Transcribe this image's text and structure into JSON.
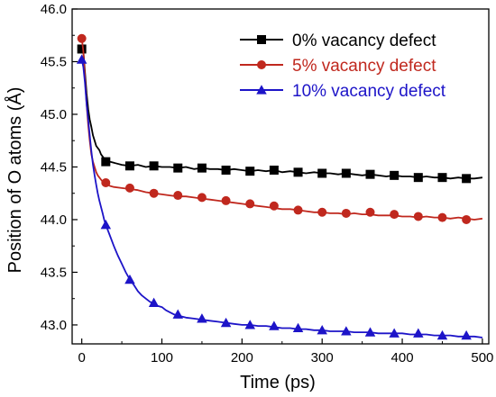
{
  "chart_data": {
    "type": "line",
    "xlabel": "Time (ps)",
    "ylabel": "Position of O atoms (Å)",
    "xlim": [
      -12,
      508
    ],
    "ylim": [
      42.82,
      46.0
    ],
    "x_ticks": [
      0,
      100,
      200,
      300,
      400,
      500
    ],
    "y_ticks": [
      43.0,
      43.5,
      44.0,
      44.5,
      45.0,
      45.5,
      46.0
    ],
    "legend_position": "top-right",
    "grid": false,
    "series": [
      {
        "name": "0% vacancy defect",
        "color": "#000000",
        "marker": "square",
        "line": [
          [
            0,
            45.62
          ],
          [
            2,
            45.6
          ],
          [
            4,
            45.4
          ],
          [
            6,
            45.2
          ],
          [
            8,
            45.05
          ],
          [
            10,
            44.95
          ],
          [
            12,
            44.88
          ],
          [
            14,
            44.8
          ],
          [
            16,
            44.75
          ],
          [
            18,
            44.7
          ],
          [
            20,
            44.68
          ],
          [
            22,
            44.66
          ],
          [
            24,
            44.62
          ],
          [
            26,
            44.6
          ],
          [
            28,
            44.58
          ],
          [
            30,
            44.56
          ],
          [
            35,
            44.55
          ],
          [
            40,
            44.54
          ],
          [
            50,
            44.52
          ],
          [
            60,
            44.51
          ],
          [
            70,
            44.52
          ],
          [
            80,
            44.5
          ],
          [
            90,
            44.51
          ],
          [
            100,
            44.5
          ],
          [
            110,
            44.5
          ],
          [
            120,
            44.49
          ],
          [
            130,
            44.5
          ],
          [
            140,
            44.48
          ],
          [
            150,
            44.49
          ],
          [
            160,
            44.48
          ],
          [
            170,
            44.48
          ],
          [
            180,
            44.47
          ],
          [
            190,
            44.48
          ],
          [
            200,
            44.47
          ],
          [
            210,
            44.46
          ],
          [
            220,
            44.47
          ],
          [
            230,
            44.46
          ],
          [
            240,
            44.47
          ],
          [
            250,
            44.45
          ],
          [
            260,
            44.46
          ],
          [
            270,
            44.45
          ],
          [
            280,
            44.44
          ],
          [
            290,
            44.45
          ],
          [
            300,
            44.44
          ],
          [
            310,
            44.44
          ],
          [
            320,
            44.43
          ],
          [
            330,
            44.44
          ],
          [
            340,
            44.43
          ],
          [
            350,
            44.42
          ],
          [
            360,
            44.43
          ],
          [
            370,
            44.42
          ],
          [
            380,
            44.41
          ],
          [
            390,
            44.42
          ],
          [
            400,
            44.41
          ],
          [
            410,
            44.41
          ],
          [
            420,
            44.4
          ],
          [
            430,
            44.41
          ],
          [
            440,
            44.4
          ],
          [
            450,
            44.4
          ],
          [
            460,
            44.39
          ],
          [
            470,
            44.4
          ],
          [
            480,
            44.39
          ],
          [
            490,
            44.39
          ],
          [
            500,
            44.4
          ]
        ],
        "markers": [
          [
            0,
            45.62
          ],
          [
            30,
            44.55
          ],
          [
            60,
            44.51
          ],
          [
            90,
            44.51
          ],
          [
            120,
            44.49
          ],
          [
            150,
            44.49
          ],
          [
            180,
            44.47
          ],
          [
            210,
            44.46
          ],
          [
            240,
            44.47
          ],
          [
            270,
            44.45
          ],
          [
            300,
            44.44
          ],
          [
            330,
            44.44
          ],
          [
            360,
            44.43
          ],
          [
            390,
            44.42
          ],
          [
            420,
            44.4
          ],
          [
            450,
            44.4
          ],
          [
            480,
            44.39
          ]
        ]
      },
      {
        "name": "5% vacancy defect",
        "color": "#c0281e",
        "marker": "circle",
        "line": [
          [
            0,
            45.72
          ],
          [
            2,
            45.6
          ],
          [
            4,
            45.35
          ],
          [
            6,
            45.1
          ],
          [
            8,
            44.9
          ],
          [
            10,
            44.75
          ],
          [
            12,
            44.62
          ],
          [
            14,
            44.55
          ],
          [
            16,
            44.5
          ],
          [
            18,
            44.45
          ],
          [
            20,
            44.42
          ],
          [
            22,
            44.4
          ],
          [
            24,
            44.38
          ],
          [
            26,
            44.36
          ],
          [
            28,
            44.35
          ],
          [
            30,
            44.34
          ],
          [
            35,
            44.32
          ],
          [
            40,
            44.31
          ],
          [
            50,
            44.3
          ],
          [
            60,
            44.29
          ],
          [
            70,
            44.28
          ],
          [
            80,
            44.26
          ],
          [
            90,
            44.25
          ],
          [
            100,
            44.24
          ],
          [
            110,
            44.23
          ],
          [
            120,
            44.22
          ],
          [
            130,
            44.22
          ],
          [
            140,
            44.21
          ],
          [
            150,
            44.2
          ],
          [
            160,
            44.19
          ],
          [
            170,
            44.18
          ],
          [
            180,
            44.17
          ],
          [
            190,
            44.16
          ],
          [
            200,
            44.15
          ],
          [
            210,
            44.14
          ],
          [
            220,
            44.13
          ],
          [
            230,
            44.12
          ],
          [
            240,
            44.11
          ],
          [
            250,
            44.1
          ],
          [
            260,
            44.1
          ],
          [
            270,
            44.09
          ],
          [
            280,
            44.08
          ],
          [
            290,
            44.07
          ],
          [
            300,
            44.07
          ],
          [
            310,
            44.06
          ],
          [
            320,
            44.06
          ],
          [
            330,
            44.05
          ],
          [
            340,
            44.06
          ],
          [
            350,
            44.05
          ],
          [
            360,
            44.05
          ],
          [
            370,
            44.04
          ],
          [
            380,
            44.04
          ],
          [
            390,
            44.04
          ],
          [
            400,
            44.03
          ],
          [
            410,
            44.03
          ],
          [
            420,
            44.02
          ],
          [
            430,
            44.03
          ],
          [
            440,
            44.02
          ],
          [
            450,
            44.02
          ],
          [
            460,
            44.01
          ],
          [
            470,
            44.02
          ],
          [
            480,
            44.01
          ],
          [
            490,
            44.0
          ],
          [
            500,
            44.01
          ]
        ],
        "markers": [
          [
            0,
            45.72
          ],
          [
            30,
            44.35
          ],
          [
            60,
            44.3
          ],
          [
            90,
            44.25
          ],
          [
            120,
            44.23
          ],
          [
            150,
            44.21
          ],
          [
            180,
            44.18
          ],
          [
            210,
            44.15
          ],
          [
            240,
            44.13
          ],
          [
            270,
            44.09
          ],
          [
            300,
            44.07
          ],
          [
            330,
            44.06
          ],
          [
            360,
            44.07
          ],
          [
            390,
            44.05
          ],
          [
            420,
            44.03
          ],
          [
            450,
            44.02
          ],
          [
            480,
            44.0
          ]
        ]
      },
      {
        "name": "10% vacancy defect",
        "color": "#1d14c8",
        "marker": "triangle",
        "line": [
          [
            0,
            45.52
          ],
          [
            2,
            45.45
          ],
          [
            4,
            45.3
          ],
          [
            6,
            45.1
          ],
          [
            8,
            44.95
          ],
          [
            10,
            44.8
          ],
          [
            12,
            44.65
          ],
          [
            14,
            44.52
          ],
          [
            16,
            44.42
          ],
          [
            18,
            44.33
          ],
          [
            20,
            44.25
          ],
          [
            22,
            44.18
          ],
          [
            24,
            44.12
          ],
          [
            26,
            44.06
          ],
          [
            28,
            44.0
          ],
          [
            30,
            43.95
          ],
          [
            35,
            43.85
          ],
          [
            40,
            43.75
          ],
          [
            45,
            43.66
          ],
          [
            50,
            43.58
          ],
          [
            55,
            43.5
          ],
          [
            60,
            43.43
          ],
          [
            65,
            43.38
          ],
          [
            70,
            43.32
          ],
          [
            75,
            43.28
          ],
          [
            80,
            43.25
          ],
          [
            85,
            43.22
          ],
          [
            90,
            43.2
          ],
          [
            95,
            43.18
          ],
          [
            100,
            43.17
          ],
          [
            105,
            43.14
          ],
          [
            110,
            43.12
          ],
          [
            115,
            43.1
          ],
          [
            120,
            43.09
          ],
          [
            125,
            43.08
          ],
          [
            130,
            43.07
          ],
          [
            140,
            43.06
          ],
          [
            150,
            43.05
          ],
          [
            160,
            43.04
          ],
          [
            170,
            43.03
          ],
          [
            180,
            43.02
          ],
          [
            190,
            43.01
          ],
          [
            200,
            43.0
          ],
          [
            210,
            43.0
          ],
          [
            220,
            42.99
          ],
          [
            230,
            42.99
          ],
          [
            240,
            42.98
          ],
          [
            250,
            42.97
          ],
          [
            260,
            42.97
          ],
          [
            270,
            42.96
          ],
          [
            280,
            42.96
          ],
          [
            290,
            42.95
          ],
          [
            300,
            42.95
          ],
          [
            310,
            42.94
          ],
          [
            320,
            42.94
          ],
          [
            330,
            42.94
          ],
          [
            340,
            42.93
          ],
          [
            350,
            42.93
          ],
          [
            360,
            42.93
          ],
          [
            370,
            42.92
          ],
          [
            380,
            42.92
          ],
          [
            390,
            42.92
          ],
          [
            400,
            42.92
          ],
          [
            410,
            42.91
          ],
          [
            420,
            42.91
          ],
          [
            430,
            42.91
          ],
          [
            440,
            42.9
          ],
          [
            450,
            42.9
          ],
          [
            460,
            42.9
          ],
          [
            470,
            42.89
          ],
          [
            480,
            42.89
          ],
          [
            490,
            42.89
          ],
          [
            500,
            42.88
          ]
        ],
        "markers": [
          [
            0,
            45.52
          ],
          [
            30,
            43.95
          ],
          [
            60,
            43.43
          ],
          [
            90,
            43.21
          ],
          [
            120,
            43.1
          ],
          [
            150,
            43.06
          ],
          [
            180,
            43.02
          ],
          [
            210,
            43.0
          ],
          [
            240,
            42.99
          ],
          [
            270,
            42.97
          ],
          [
            300,
            42.95
          ],
          [
            330,
            42.94
          ],
          [
            360,
            42.93
          ],
          [
            390,
            42.92
          ],
          [
            420,
            42.92
          ],
          [
            450,
            42.9
          ],
          [
            480,
            42.9
          ]
        ]
      }
    ]
  }
}
